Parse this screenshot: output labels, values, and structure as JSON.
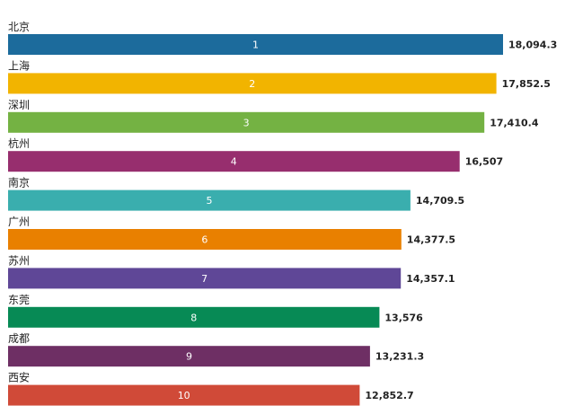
{
  "chart_data": {
    "type": "bar",
    "orientation": "horizontal",
    "categories": [
      "北京",
      "上海",
      "深圳",
      "杭州",
      "南京",
      "广州",
      "苏州",
      "东莞",
      "成都",
      "西安"
    ],
    "values": [
      18094.3,
      17852.5,
      17410.4,
      16507,
      14709.5,
      14377.5,
      14357.1,
      13576,
      13231.3,
      12852.7
    ],
    "value_labels": [
      "18,094.3",
      "17,852.5",
      "17,410.4",
      "16,507",
      "14,709.5",
      "14,377.5",
      "14,357.1",
      "13,576",
      "13,231.3",
      "12,852.7"
    ],
    "ranks": [
      "1",
      "2",
      "3",
      "4",
      "5",
      "6",
      "7",
      "8",
      "9",
      "10"
    ],
    "colors": [
      "#1c6b9c",
      "#f2b400",
      "#74b243",
      "#972e6e",
      "#3aaeae",
      "#e98000",
      "#5f4797",
      "#078a55",
      "#6e2f64",
      "#d04a38"
    ],
    "xlim": [
      0,
      18094.3
    ],
    "grid": false,
    "legend": "none"
  }
}
